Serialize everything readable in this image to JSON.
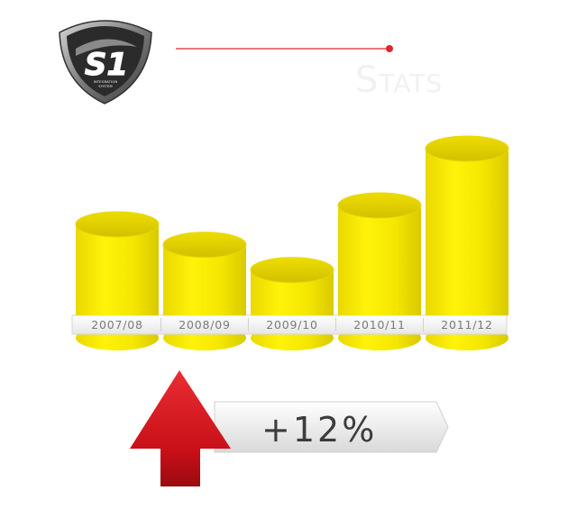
{
  "logo": {
    "mark": "S1",
    "line1": "INTEGRATION",
    "line2": "SYSTEM"
  },
  "header": {
    "title": "Stats"
  },
  "chart_data": {
    "type": "bar",
    "categories": [
      "2007/08",
      "2008/09",
      "2009/10",
      "2010/11",
      "2011/12"
    ],
    "values": [
      7.2,
      5.9,
      4.3,
      8.4,
      12.0
    ],
    "ylim": [
      0,
      12
    ],
    "grid": false,
    "legend": "none",
    "bar_color": "#f2e400"
  },
  "growth": {
    "label": "+12%",
    "arrow_color": "#d8141c"
  },
  "colors": {
    "accent_line": "#e0262c",
    "stats_title": "#f1f1f1"
  }
}
